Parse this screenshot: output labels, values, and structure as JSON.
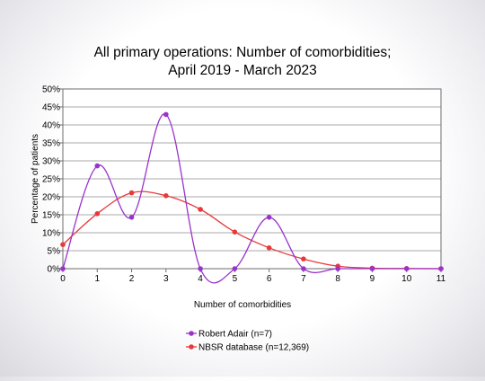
{
  "chart_data": {
    "type": "line",
    "title_lines": [
      "All primary operations: Number of comorbidities;",
      "April 2019 - March 2023"
    ],
    "xlabel": "Number of comorbidities",
    "ylabel": "Percentage of patients",
    "x": [
      0,
      1,
      2,
      3,
      4,
      5,
      6,
      7,
      8,
      9,
      10,
      11
    ],
    "x_tick_labels": [
      "0",
      "1",
      "2",
      "3",
      "4",
      "5",
      "6",
      "7",
      "8",
      "9",
      "10",
      "11"
    ],
    "ylim": [
      0,
      50
    ],
    "y_ticks": [
      0,
      5,
      10,
      15,
      20,
      25,
      30,
      35,
      40,
      45,
      50
    ],
    "y_tick_labels": [
      "0%",
      "5%",
      "10%",
      "15%",
      "20%",
      "25%",
      "30%",
      "35%",
      "40%",
      "45%",
      "50%"
    ],
    "grid": true,
    "legend_position": "bottom",
    "series": [
      {
        "name": "Robert Adair (n=7)",
        "color": "#9933cc",
        "values": [
          0,
          28.6,
          14.3,
          42.9,
          0,
          0,
          14.3,
          0,
          0,
          0,
          0,
          0
        ]
      },
      {
        "name": "NBSR database (n=12,369)",
        "color": "#e8393a",
        "values": [
          6.7,
          15.3,
          21.1,
          20.3,
          16.5,
          10.2,
          5.8,
          2.7,
          0.7,
          0.15,
          0.05,
          0
        ]
      }
    ]
  }
}
